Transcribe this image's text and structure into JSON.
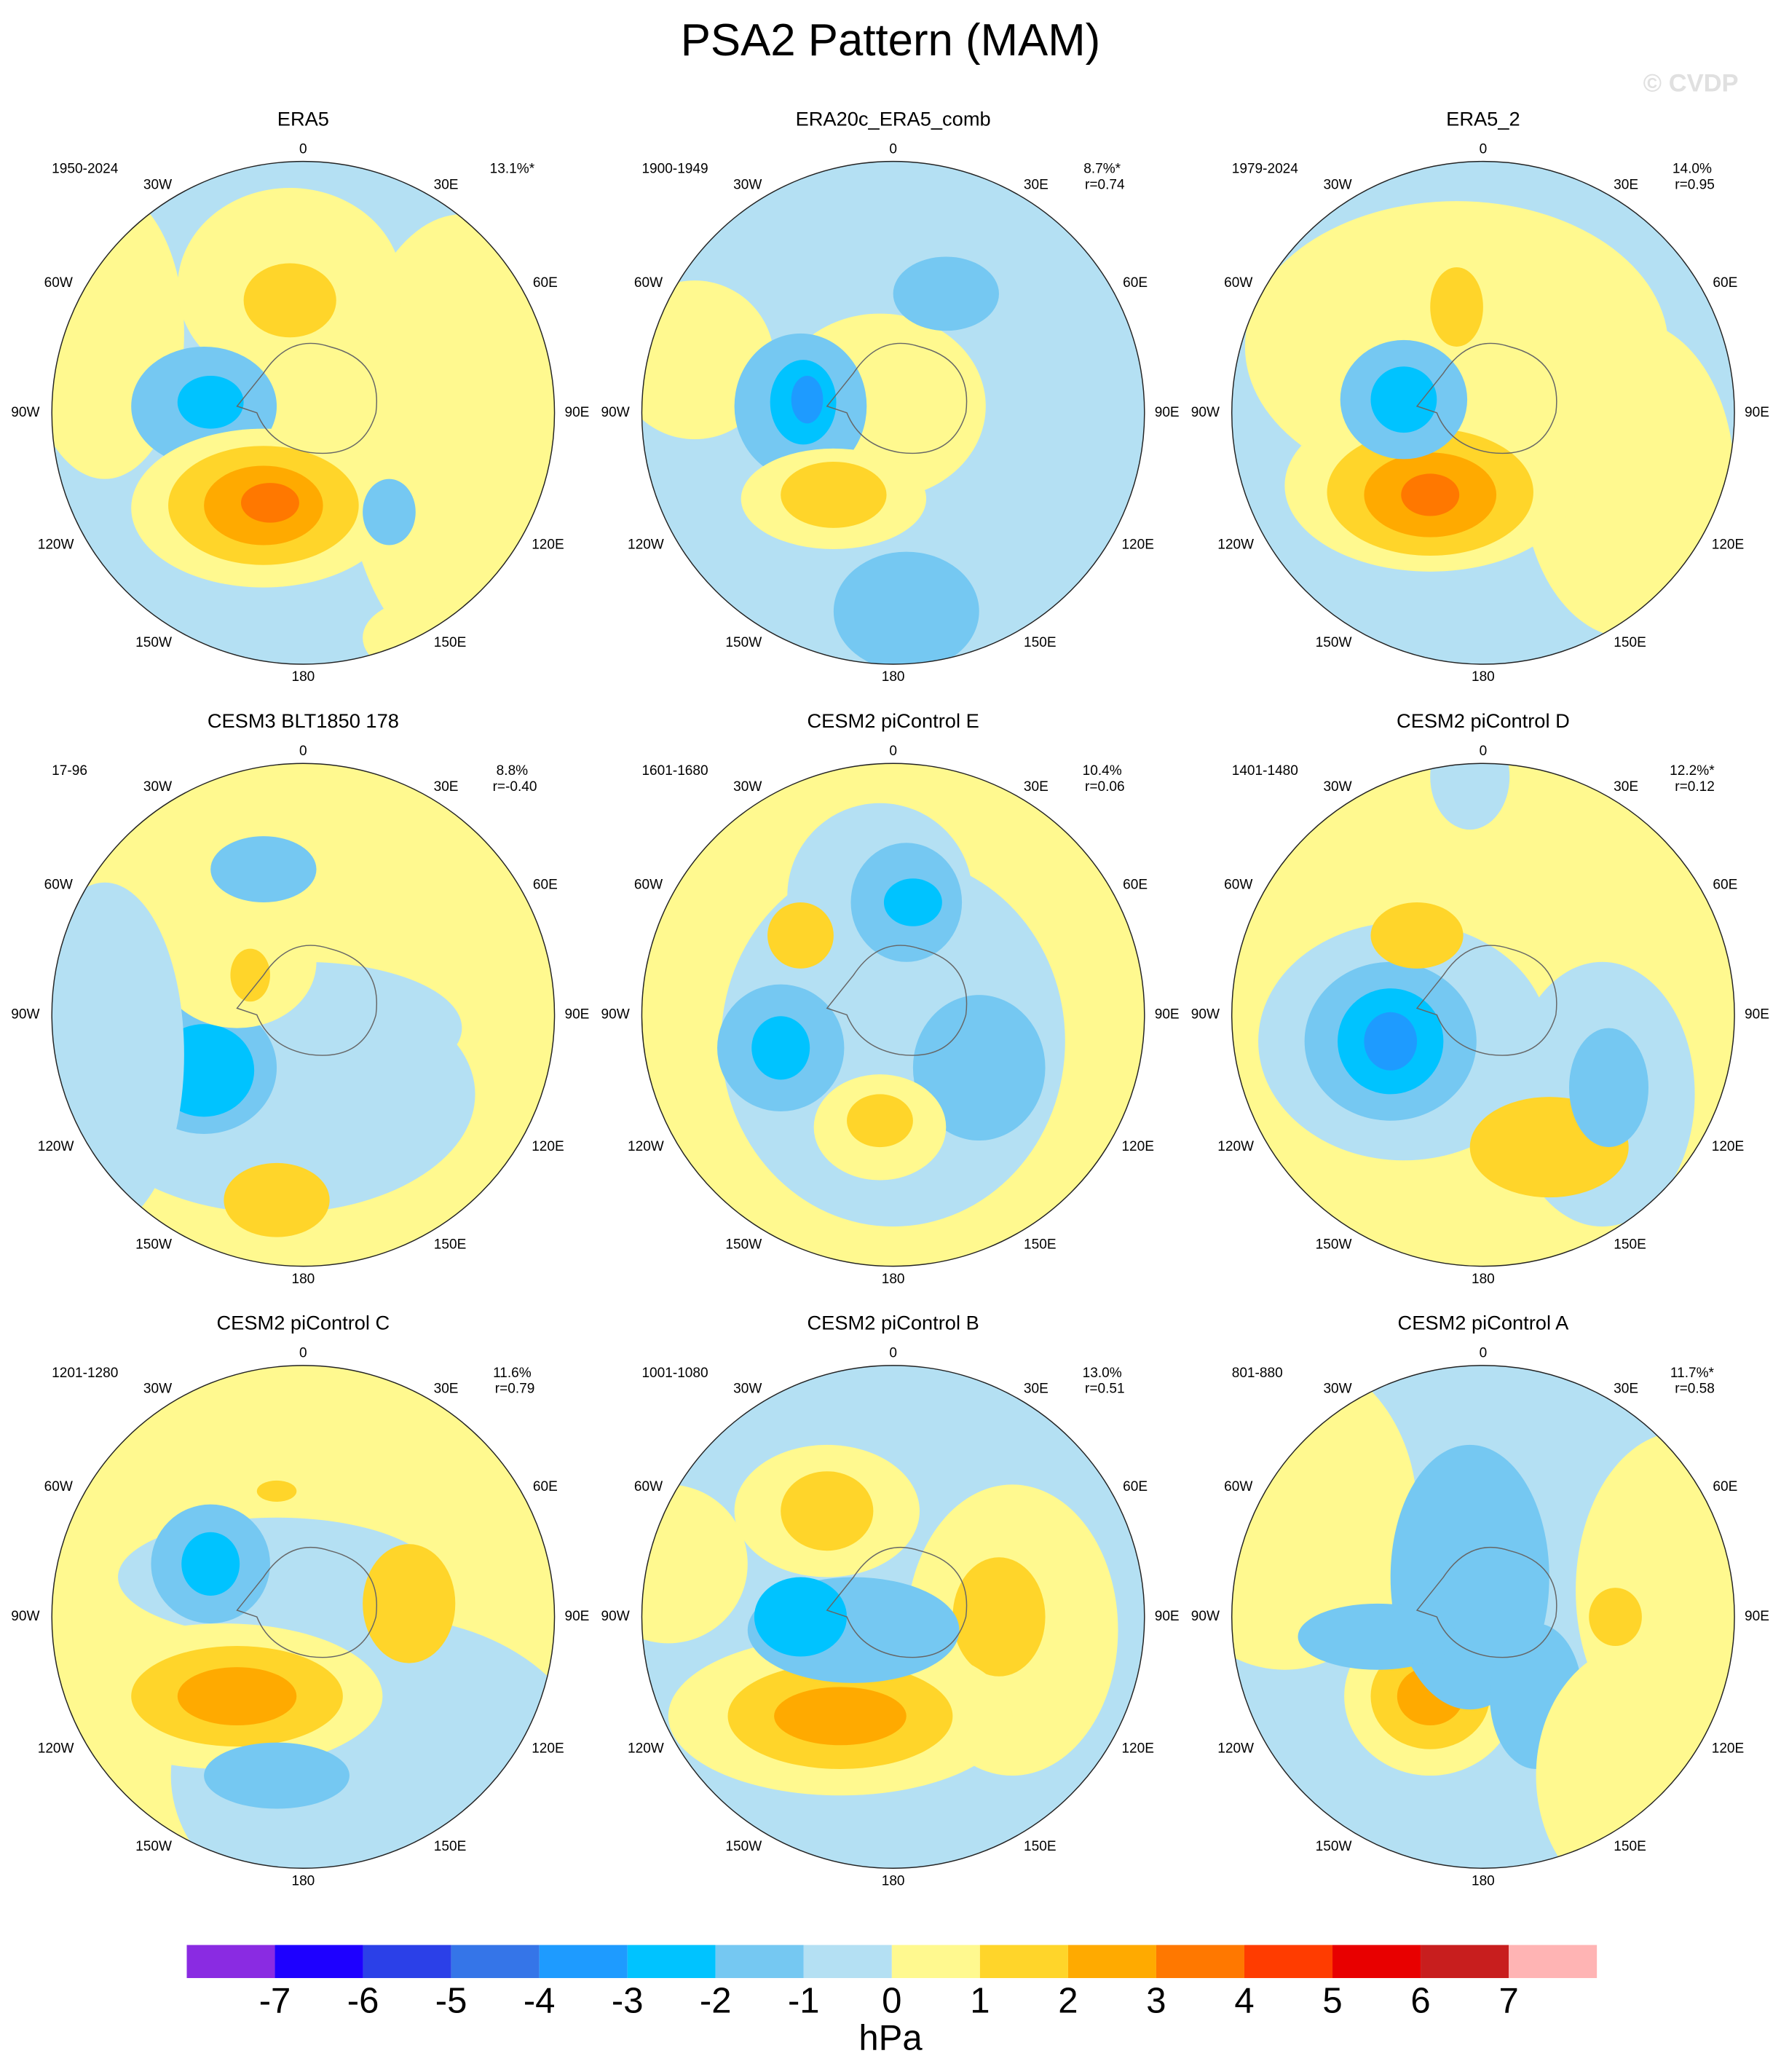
{
  "title": "PSA2 Pattern (MAM)",
  "watermark": "© CVDP",
  "panels": [
    {
      "title": "ERA5",
      "years": "1950-2024",
      "pct": "13.1%*"
    },
    {
      "title": "ERA20c_ERA5_comb",
      "years": "1900-1949",
      "pct": "8.7%*",
      "r": "r=0.74"
    },
    {
      "title": "ERA5_2",
      "years": "1979-2024",
      "pct": "14.0%",
      "r": "r=0.95"
    },
    {
      "title": "CESM3 BLT1850 178",
      "years": "17-96",
      "pct": "8.8%",
      "r": "r=-0.40"
    },
    {
      "title": "CESM2 piControl E",
      "years": "1601-1680",
      "pct": "10.4%",
      "r": "r=0.06"
    },
    {
      "title": "CESM2 piControl D",
      "years": "1401-1480",
      "pct": "12.2%*",
      "r": "r=0.12"
    },
    {
      "title": "CESM2 piControl C",
      "years": "1201-1280",
      "pct": "11.6%",
      "r": "r=0.79"
    },
    {
      "title": "CESM2 piControl B",
      "years": "1001-1080",
      "pct": "13.0%",
      "r": "r=0.51"
    },
    {
      "title": "CESM2 piControl A",
      "years": "801-880",
      "pct": "11.7%*",
      "r": "r=0.58"
    }
  ],
  "lon_labels": [
    "0",
    "30E",
    "60E",
    "90E",
    "120E",
    "150E",
    "180",
    "150W",
    "120W",
    "90W",
    "60W",
    "30W"
  ],
  "colorbar": {
    "colors": [
      "#8a2be2",
      "#1e00ff",
      "#2b40e8",
      "#3575e8",
      "#1e9bff",
      "#00c3ff",
      "#75c8f2",
      "#b4e0f3",
      "#fff98f",
      "#ffd52a",
      "#ffaa00",
      "#ff7800",
      "#ff3c00",
      "#e80000",
      "#c81e1e",
      "#ffb4b4"
    ],
    "labels": [
      -7,
      -6,
      -5,
      -4,
      -3,
      -2,
      -1,
      0,
      1,
      2,
      3,
      4,
      5,
      6,
      7
    ],
    "unit": "hPa"
  }
}
